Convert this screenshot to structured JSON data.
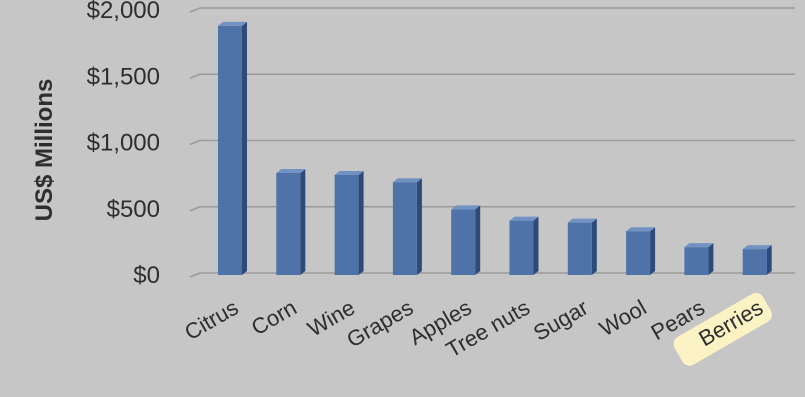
{
  "chart_data": {
    "type": "bar",
    "categories": [
      "Citrus",
      "Corn",
      "Wine",
      "Grapes",
      "Apples",
      "Tree nuts",
      "Sugar",
      "Wool",
      "Pears",
      "Berries"
    ],
    "values": [
      1880,
      770,
      755,
      700,
      495,
      410,
      395,
      330,
      210,
      195
    ],
    "title": "",
    "xlabel": "",
    "ylabel": "US$ Millions",
    "ylim": [
      0,
      2000
    ],
    "yticks": [
      "$0",
      "$500",
      "$1,000",
      "$1,500",
      "$2,000"
    ],
    "ytick_values": [
      0,
      500,
      1000,
      1500,
      2000
    ],
    "grid": true,
    "highlight_category": "Berries",
    "colors": {
      "bar_front": "#4f72a8",
      "bar_side": "#2e4a78",
      "bar_top": "#7392c4",
      "grid": "#9a9a9a",
      "highlight_bg": "#fbf3c3",
      "background": "#c6c6c6"
    }
  }
}
